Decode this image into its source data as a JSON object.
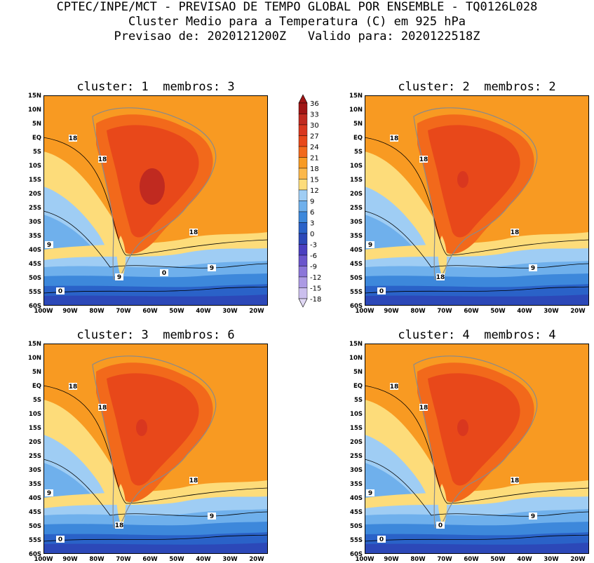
{
  "header": {
    "line1": "CPTEC/INPE/MCT - PREVISAO DE TEMPO GLOBAL POR ENSEMBLE - TQ0126L028",
    "line2": "Cluster Medio para a Temperatura (C) em 925 hPa",
    "line3": "Previsao de: 2020121200Z   Valido para: 2020122518Z"
  },
  "lat_ticks": [
    "15N",
    "10N",
    "5N",
    "EQ",
    "5S",
    "10S",
    "15S",
    "20S",
    "25S",
    "30S",
    "35S",
    "40S",
    "45S",
    "50S",
    "55S",
    "60S"
  ],
  "lon_ticks": [
    "100W",
    "90W",
    "80W",
    "70W",
    "60W",
    "50W",
    "40W",
    "30W",
    "20W"
  ],
  "colorbar": {
    "labels": [
      "36",
      "33",
      "30",
      "27",
      "24",
      "21",
      "18",
      "15",
      "12",
      "9",
      "6",
      "3",
      "0",
      "-3",
      "-6",
      "-9",
      "-12",
      "-15",
      "-18"
    ],
    "colors": [
      "#a01515",
      "#c02a20",
      "#d9371f",
      "#e8481a",
      "#f2691b",
      "#f89a22",
      "#fcb84a",
      "#fddc7a",
      "#9fcdf4",
      "#6fb0ec",
      "#3d88db",
      "#2a62c8",
      "#2c48b8",
      "#4a3fc0",
      "#6a55cc",
      "#8b76d9",
      "#ac9ae4",
      "#cbbfee"
    ]
  },
  "panels": [
    {
      "title": "cluster: 1  membros: 3",
      "contour_labels": [
        "18",
        "18",
        "18",
        "9",
        "9",
        "9",
        "0",
        "0"
      ]
    },
    {
      "title": "cluster: 2  membros: 2",
      "contour_labels": [
        "18",
        "18",
        "18",
        "9",
        "9",
        "18",
        "0"
      ]
    },
    {
      "title": "cluster: 3  membros: 6",
      "contour_labels": [
        "18",
        "18",
        "18",
        "9",
        "9",
        "18",
        "0"
      ]
    },
    {
      "title": "cluster: 4  membros: 4",
      "contour_labels": [
        "18",
        "18",
        "18",
        "9",
        "9",
        "0",
        "0"
      ]
    }
  ]
}
